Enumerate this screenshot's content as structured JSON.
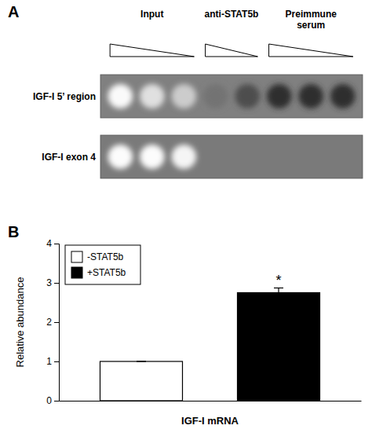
{
  "chart_data": [
    {
      "type": "heatmap",
      "title": "A",
      "rows": [
        "IGF-I 5’ region",
        "IGF-I exon 4"
      ],
      "row_background": [
        0.5,
        0.48
      ],
      "groups": [
        {
          "name": "Input",
          "cells": [
            [
              0.98,
              0.88,
              0.8
            ],
            [
              0.99,
              0.99,
              0.96
            ]
          ]
        },
        {
          "name": "anti-STAT5b",
          "cells": [
            [
              0.45,
              0.3
            ],
            [
              null,
              null
            ]
          ]
        },
        {
          "name": "Preimmune\nserum",
          "cells": [
            [
              0.18,
              0.18,
              0.18
            ],
            [
              null,
              null,
              null
            ]
          ]
        }
      ]
    },
    {
      "type": "bar",
      "title": "B",
      "categories": [
        null,
        null
      ],
      "series": [
        {
          "name": "-STAT5b",
          "color": "#ffffff",
          "values": [
            1.0,
            null
          ],
          "error_bars": [
            0.0,
            null
          ]
        },
        {
          "name": "+STAT5b",
          "color": "#000000",
          "values": [
            null,
            2.75
          ],
          "error_bars": [
            null,
            0.12
          ],
          "annotation": "*"
        }
      ],
      "xlabel": "IGF-I mRNA",
      "ylabel": "Relative abundance",
      "ylim": [
        0,
        4
      ],
      "yticks": [
        0,
        1,
        2,
        3,
        4
      ],
      "grid": false,
      "legend": "upper left",
      "tick_labels": "y"
    }
  ]
}
